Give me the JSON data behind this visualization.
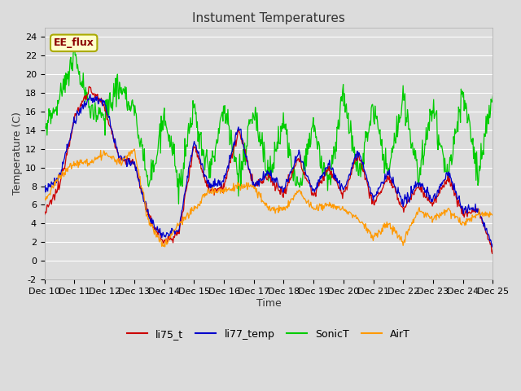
{
  "title": "Instument Temperatures",
  "xlabel": "Time",
  "ylabel": "Temperature (C)",
  "ylim": [
    -2,
    25
  ],
  "yticks": [
    -2,
    0,
    2,
    4,
    6,
    8,
    10,
    12,
    14,
    16,
    18,
    20,
    22,
    24
  ],
  "x_labels": [
    "Dec 10",
    "Dec 11",
    "Dec 12",
    "Dec 13",
    "Dec 14",
    "Dec 15",
    "Dec 16",
    "Dec 17",
    "Dec 18",
    "Dec 19",
    "Dec 20",
    "Dec 21",
    "Dec 22",
    "Dec 23",
    "Dec 24",
    "Dec 25"
  ],
  "background_color": "#dcdcdc",
  "annotation_text": "EE_flux",
  "annotation_color": "#8b0000",
  "annotation_bg": "#ffffcc",
  "annotation_border": "#aaaa00",
  "colors": {
    "li75_t": "#cc0000",
    "li77_temp": "#0000cc",
    "SonicT": "#00cc00",
    "AirT": "#ff9900"
  },
  "grid_color": "#ffffff",
  "title_fontsize": 11,
  "axis_label_fontsize": 9,
  "tick_fontsize": 8,
  "legend_fontsize": 9
}
